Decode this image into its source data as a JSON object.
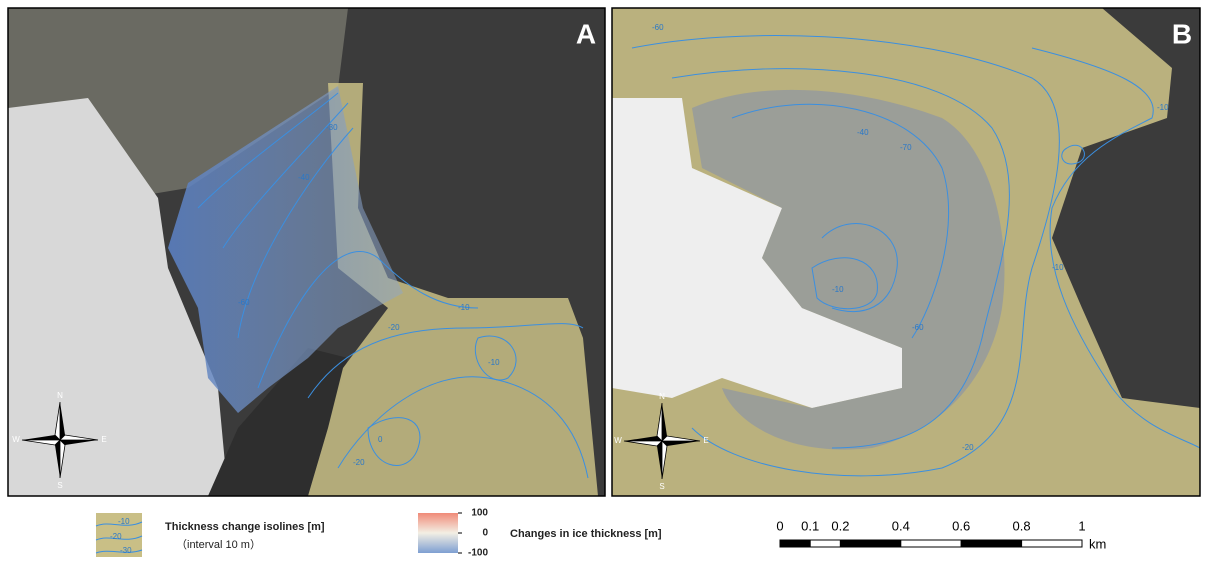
{
  "panels": [
    {
      "label": "A",
      "contour_labels": [
        "-30",
        "-40",
        "-60",
        "-20",
        "-10",
        "0",
        "-10",
        "-20"
      ]
    },
    {
      "label": "B",
      "contour_labels": [
        "-60",
        "-40",
        "-70",
        "-10",
        "-60",
        "-10",
        "-10",
        "-20"
      ]
    }
  ],
  "compass": {
    "n": "N",
    "s": "S",
    "w": "W",
    "e": "E"
  },
  "legend": {
    "isolines": {
      "title": "Thickness change isolines [m]",
      "subtitle": "（interval 10 m）",
      "samples": [
        "-10",
        "-20",
        "-30"
      ]
    },
    "colorbar": {
      "title": "Changes in ice thickness [m]",
      "ticks": [
        100,
        0,
        -100
      ],
      "lim": [
        -100,
        100
      ]
    }
  },
  "scale_bar": {
    "ticks": [
      0,
      0.1,
      0.2,
      0.4,
      0.6,
      0.8,
      1
    ],
    "unit": "km"
  }
}
